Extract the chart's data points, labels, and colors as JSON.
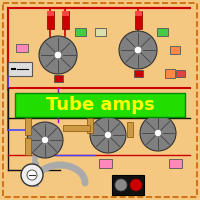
{
  "bg_color": "#f5c882",
  "border_color": "#cc6600",
  "title": "Tube amps",
  "title_bg": "#22dd00",
  "title_fg": "#ffff00",
  "tube_color": "#808080",
  "tube_center_color": "#ffffff",
  "red_color": "#cc0000",
  "wire_red": "#cc0000",
  "wire_blue": "#4444ff",
  "wire_purple": "#aa00cc",
  "wire_black": "#111111",
  "wire_gray": "#999999",
  "resistor_tan": "#cc9944",
  "green_box": "#44cc44",
  "pink_box": "#ff88bb",
  "orange_box": "#ff8844",
  "gray_box": "#cccccc",
  "beige_box": "#ddddaa"
}
